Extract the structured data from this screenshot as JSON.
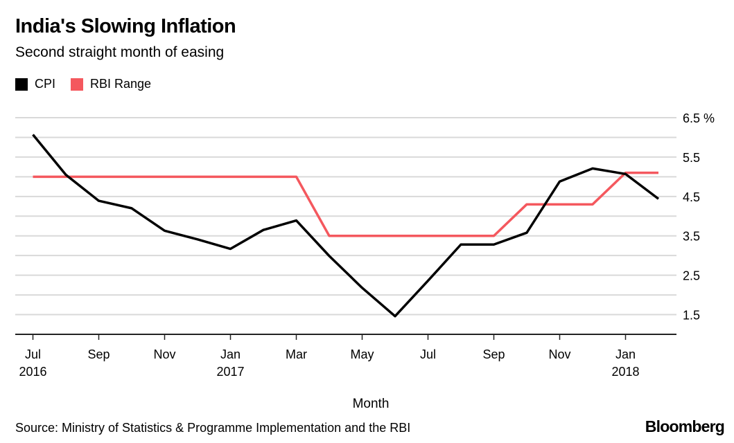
{
  "chart_data": {
    "type": "line",
    "title": "India's Slowing Inflation",
    "subtitle": "Second straight month of easing",
    "xlabel": "Month",
    "ylabel": "",
    "y_unit": "%",
    "ylim": [
      1.0,
      6.5
    ],
    "yticks": [
      "6.5 %",
      "5.5",
      "4.5",
      "3.5",
      "2.5",
      "1.5"
    ],
    "ytick_values": [
      6.5,
      5.5,
      4.5,
      3.5,
      2.5,
      1.5
    ],
    "grid": true,
    "legend_position": "top-left",
    "x": [
      "2016-07",
      "2016-08",
      "2016-09",
      "2016-10",
      "2016-11",
      "2016-12",
      "2017-01",
      "2017-02",
      "2017-03",
      "2017-04",
      "2017-05",
      "2017-06",
      "2017-07",
      "2017-08",
      "2017-09",
      "2017-10",
      "2017-11",
      "2017-12",
      "2018-01",
      "2018-02"
    ],
    "xticks": [
      {
        "label": "Jul",
        "sub": "2016"
      },
      {
        "label": "Sep",
        "sub": ""
      },
      {
        "label": "Nov",
        "sub": ""
      },
      {
        "label": "Jan",
        "sub": "2017"
      },
      {
        "label": "Mar",
        "sub": ""
      },
      {
        "label": "May",
        "sub": ""
      },
      {
        "label": "Jul",
        "sub": ""
      },
      {
        "label": "Sep",
        "sub": ""
      },
      {
        "label": "Nov",
        "sub": ""
      },
      {
        "label": "Jan",
        "sub": "2018"
      }
    ],
    "series": [
      {
        "name": "CPI",
        "color": "#000000",
        "style": "line",
        "values": [
          6.07,
          5.05,
          4.39,
          4.2,
          3.63,
          3.41,
          3.17,
          3.65,
          3.89,
          2.99,
          2.18,
          1.46,
          2.36,
          3.28,
          3.28,
          3.58,
          4.88,
          5.21,
          5.07,
          4.44
        ]
      },
      {
        "name": "RBI Range",
        "color": "#f4585e",
        "style": "step",
        "values": [
          5.0,
          5.0,
          5.0,
          5.0,
          5.0,
          5.0,
          5.0,
          5.0,
          5.0,
          3.5,
          3.5,
          3.5,
          3.5,
          3.5,
          3.5,
          4.3,
          4.3,
          4.3,
          5.1,
          5.1
        ]
      }
    ],
    "source": "Source: Ministry of Statistics & Programme Implementation and the RBI",
    "brand": "Bloomberg"
  }
}
